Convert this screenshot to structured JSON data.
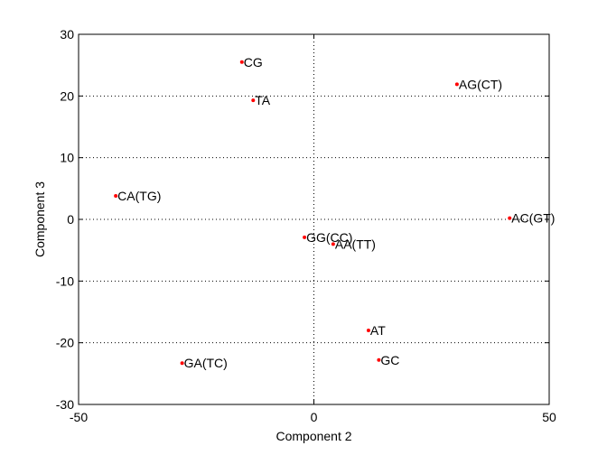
{
  "chart_data": {
    "type": "scatter",
    "title": "",
    "xlabel": "Component 2",
    "ylabel": "Component 3",
    "xlim": [
      -50,
      50
    ],
    "ylim": [
      -30,
      30
    ],
    "xticks": [
      -50,
      0,
      50
    ],
    "yticks": [
      -30,
      -20,
      -10,
      0,
      10,
      20,
      30
    ],
    "grid": "zero lines and y gridlines, dotted",
    "colors": {
      "marker": "#ff0000",
      "axis": "#000000",
      "grid": "#000000"
    },
    "points": [
      {
        "label": "CG",
        "x": -15.3,
        "y": 25.5
      },
      {
        "label": "TA",
        "x": -12.9,
        "y": 19.3
      },
      {
        "label": "AG(CT)",
        "x": 30.4,
        "y": 21.9
      },
      {
        "label": "CA(TG)",
        "x": -42.1,
        "y": 3.8
      },
      {
        "label": "AC(GT)",
        "x": 41.6,
        "y": 0.2
      },
      {
        "label": "GG(CC)",
        "x": -2.0,
        "y": -2.9
      },
      {
        "label": "AA(TT)",
        "x": 4.1,
        "y": -4.0
      },
      {
        "label": "AT",
        "x": 11.6,
        "y": -18.0
      },
      {
        "label": "GC",
        "x": 13.8,
        "y": -22.8
      },
      {
        "label": "GA(TC)",
        "x": -28.0,
        "y": -23.3
      }
    ]
  }
}
